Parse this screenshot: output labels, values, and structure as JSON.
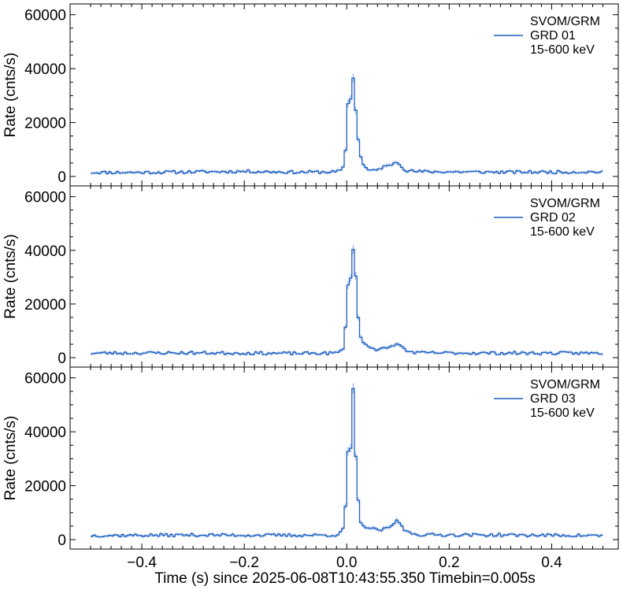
{
  "chart_data": {
    "type": "line",
    "style": "step",
    "xlabel": "Time (s) since 2025-06-08T10:43:55.350  Timebin=0.005s",
    "xlim": [
      -0.54,
      0.53
    ],
    "xticks": [
      -0.4,
      -0.2,
      0.0,
      0.2,
      0.4
    ],
    "xtick_labels": [
      "−0.4",
      "−0.2",
      "0.0",
      "0.2",
      "0.4"
    ],
    "line_color": "#1f5fbf",
    "error_color": "#7aa3e6",
    "panels": [
      {
        "ylabel": "Rate (cnts/s)",
        "ylim": [
          -3500,
          64000
        ],
        "yticks": [
          0,
          20000,
          40000,
          60000
        ],
        "ytick_labels": [
          "0",
          "20000",
          "40000",
          "60000"
        ],
        "legend": [
          "SVOM/GRM",
          "GRD 01",
          "15-600 keV"
        ],
        "legend_position": "top-right",
        "anchors": [
          [
            -0.5,
            1500
          ],
          [
            -0.4,
            1500
          ],
          [
            -0.2,
            1900
          ],
          [
            -0.1,
            1600
          ],
          [
            -0.02,
            1700
          ],
          [
            -0.008,
            2500
          ],
          [
            -0.003,
            8000
          ],
          [
            0.0,
            20000
          ],
          [
            0.003,
            28000
          ],
          [
            0.008,
            29000
          ],
          [
            0.012,
            40000
          ],
          [
            0.015,
            30000
          ],
          [
            0.02,
            18000
          ],
          [
            0.025,
            10000
          ],
          [
            0.03,
            5000
          ],
          [
            0.04,
            2500
          ],
          [
            0.055,
            2000
          ],
          [
            0.07,
            3500
          ],
          [
            0.085,
            4000
          ],
          [
            0.095,
            5500
          ],
          [
            0.105,
            4500
          ],
          [
            0.115,
            2200
          ],
          [
            0.14,
            1800
          ],
          [
            0.3,
            1600
          ],
          [
            0.49,
            1700
          ]
        ],
        "seed": 11
      },
      {
        "ylabel": "Rate (cnts/s)",
        "ylim": [
          -3500,
          64000
        ],
        "yticks": [
          0,
          20000,
          40000,
          60000
        ],
        "ytick_labels": [
          "0",
          "20000",
          "40000",
          "60000"
        ],
        "legend": [
          "SVOM/GRM",
          "GRD 02",
          "15-600 keV"
        ],
        "legend_position": "top-right",
        "anchors": [
          [
            -0.5,
            1700
          ],
          [
            -0.3,
            1800
          ],
          [
            -0.1,
            1600
          ],
          [
            -0.02,
            1700
          ],
          [
            -0.008,
            3000
          ],
          [
            -0.003,
            9000
          ],
          [
            0.0,
            20000
          ],
          [
            0.003,
            30000
          ],
          [
            0.008,
            29000
          ],
          [
            0.012,
            43000
          ],
          [
            0.015,
            41000
          ],
          [
            0.02,
            20000
          ],
          [
            0.025,
            9000
          ],
          [
            0.03,
            6000
          ],
          [
            0.04,
            4500
          ],
          [
            0.06,
            3000
          ],
          [
            0.08,
            3500
          ],
          [
            0.095,
            5000
          ],
          [
            0.105,
            4800
          ],
          [
            0.115,
            2500
          ],
          [
            0.14,
            1800
          ],
          [
            0.3,
            1700
          ],
          [
            0.49,
            1700
          ]
        ],
        "seed": 23
      },
      {
        "ylabel": "Rate (cnts/s)",
        "ylim": [
          -3500,
          64000
        ],
        "yticks": [
          0,
          20000,
          40000,
          60000
        ],
        "ytick_labels": [
          "0",
          "20000",
          "40000",
          "60000"
        ],
        "legend": [
          "SVOM/GRM",
          "GRD 03",
          "15-600 keV"
        ],
        "legend_position": "top-right",
        "anchors": [
          [
            -0.5,
            1500
          ],
          [
            -0.3,
            1700
          ],
          [
            -0.1,
            1600
          ],
          [
            -0.02,
            1700
          ],
          [
            -0.008,
            3000
          ],
          [
            -0.003,
            10000
          ],
          [
            0.0,
            24000
          ],
          [
            0.003,
            35000
          ],
          [
            0.008,
            32000
          ],
          [
            0.012,
            57000
          ],
          [
            0.015,
            40000
          ],
          [
            0.02,
            20000
          ],
          [
            0.025,
            8000
          ],
          [
            0.03,
            5000
          ],
          [
            0.04,
            4500
          ],
          [
            0.06,
            3500
          ],
          [
            0.08,
            4000
          ],
          [
            0.098,
            7000
          ],
          [
            0.108,
            5000
          ],
          [
            0.115,
            3000
          ],
          [
            0.14,
            1800
          ],
          [
            0.3,
            1700
          ],
          [
            0.49,
            1500
          ]
        ],
        "seed": 37
      }
    ]
  }
}
